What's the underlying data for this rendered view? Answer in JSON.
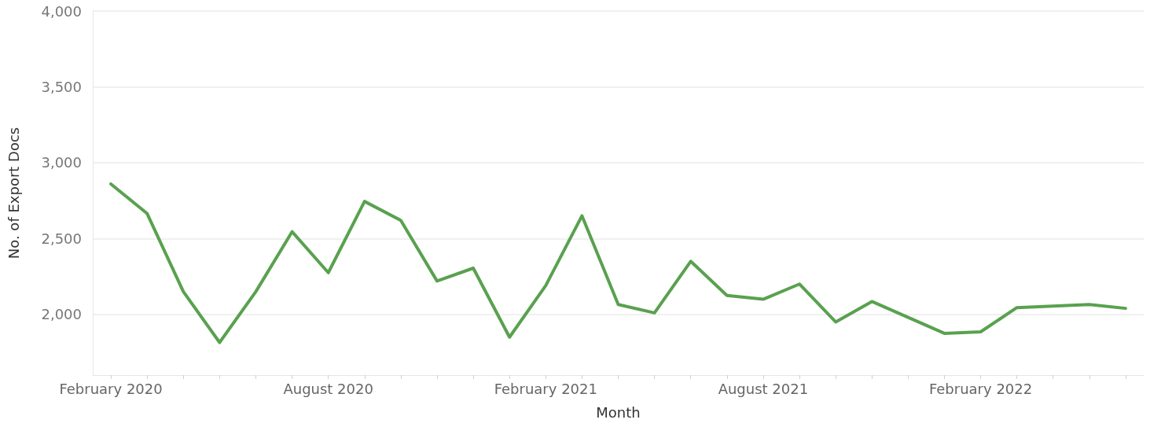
{
  "chart_data": {
    "type": "line",
    "xlabel": "Month",
    "ylabel": "No. of Export Docs",
    "categories": [
      "February 2020",
      null,
      null,
      null,
      null,
      null,
      "August 2020",
      null,
      null,
      null,
      null,
      null,
      "February 2021",
      null,
      null,
      null,
      null,
      null,
      "August 2021",
      null,
      null,
      null,
      null,
      null,
      "February 2022",
      null,
      null,
      null,
      null
    ],
    "series": [
      {
        "color": "#59a14f",
        "values": [
          2860,
          2665,
          2150,
          1815,
          2150,
          2545,
          2275,
          2745,
          2620,
          2220,
          2305,
          1850,
          2190,
          2650,
          2065,
          2010,
          2350,
          2125,
          2100,
          2200,
          1950,
          2085,
          1980,
          1875,
          1885,
          2045,
          2055,
          2065,
          2040
        ]
      }
    ],
    "ylim": [
      1600,
      4000
    ],
    "yticks": [
      {
        "value": 2000,
        "label": "2,000"
      },
      {
        "value": 2500,
        "label": "2,500"
      },
      {
        "value": 3000,
        "label": "3,000"
      },
      {
        "value": 3500,
        "label": "3,500"
      },
      {
        "value": 4000,
        "label": "4,000"
      }
    ],
    "grid": "y",
    "marker": "none",
    "line_style": "solid"
  }
}
